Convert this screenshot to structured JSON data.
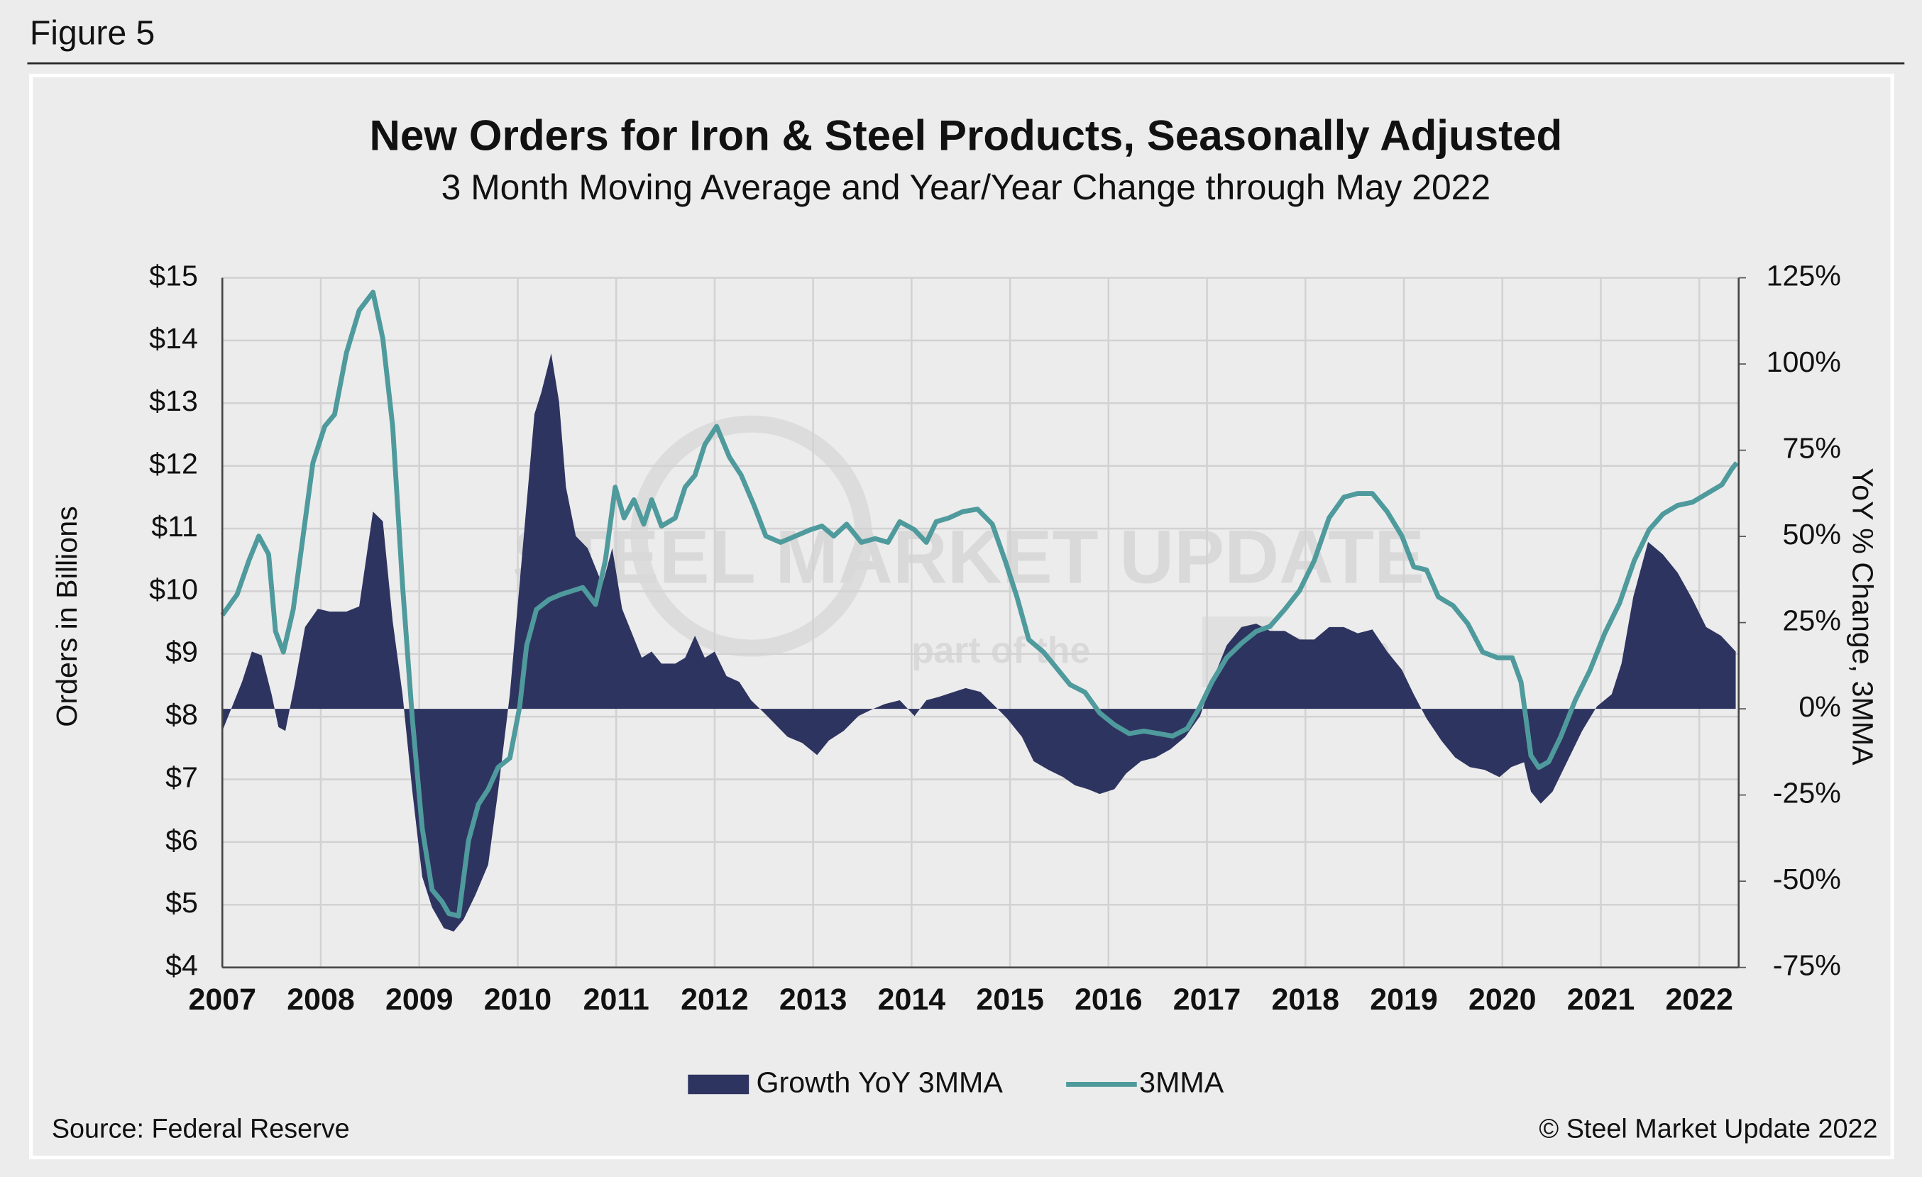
{
  "figure_label": "Figure 5",
  "chart_data": {
    "type": "area-line",
    "title": "New Orders for Iron & Steel Products, Seasonally Adjusted",
    "subtitle": "3 Month Moving Average and Year/Year Change through May 2022",
    "y_label": "Orders in Billions",
    "y2_label": "YoY % Change, 3MMA",
    "source": "Source: Federal Reserve",
    "copyright": "© Steel Market Update 2022",
    "watermark": {
      "main": "STEEL MARKET UPDATE",
      "left": "part of the",
      "right": "Group"
    },
    "grid": true,
    "xlim": [
      2007,
      2022.4
    ],
    "xticks": [
      2007,
      2008,
      2009,
      2010,
      2011,
      2012,
      2013,
      2014,
      2015,
      2016,
      2017,
      2018,
      2019,
      2020,
      2021,
      2022
    ],
    "ylim": [
      4,
      15
    ],
    "yticks": [
      {
        "value": 4,
        "label": "$4"
      },
      {
        "value": 5,
        "label": "$5"
      },
      {
        "value": 6,
        "label": "$6"
      },
      {
        "value": 7,
        "label": "$7"
      },
      {
        "value": 8,
        "label": "$8"
      },
      {
        "value": 9,
        "label": "$9"
      },
      {
        "value": 10,
        "label": "$10"
      },
      {
        "value": 11,
        "label": "$11"
      },
      {
        "value": 12,
        "label": "$12"
      },
      {
        "value": 13,
        "label": "$13"
      },
      {
        "value": 14,
        "label": "$14"
      },
      {
        "value": 15,
        "label": "$15"
      }
    ],
    "y2lim": [
      -75,
      125
    ],
    "y2ticks": [
      {
        "value": -75,
        "label": "-75%"
      },
      {
        "value": -50,
        "label": "-50%"
      },
      {
        "value": -25,
        "label": "-25%"
      },
      {
        "value": 0,
        "label": "0%"
      },
      {
        "value": 25,
        "label": "25%"
      },
      {
        "value": 50,
        "label": "50%"
      },
      {
        "value": 75,
        "label": "75%"
      },
      {
        "value": 100,
        "label": "100%"
      },
      {
        "value": 125,
        "label": "125%"
      }
    ],
    "series": [
      {
        "name": "Growth YoY 3MMA",
        "type": "area",
        "axis": "y2",
        "color": "#2e3460",
        "x": [
          2007.0,
          2007.1,
          2007.2,
          2007.3,
          2007.4,
          2007.5,
          2007.57,
          2007.64,
          2007.74,
          2007.84,
          2007.97,
          2008.09,
          2008.26,
          2008.39,
          2008.53,
          2008.63,
          2008.73,
          2008.83,
          2008.93,
          2009.03,
          2009.13,
          2009.25,
          2009.35,
          2009.45,
          2009.57,
          2009.7,
          2009.8,
          2009.92,
          2010.04,
          2010.17,
          2010.24,
          2010.34,
          2010.42,
          2010.49,
          2010.59,
          2010.71,
          2010.86,
          2010.96,
          2011.06,
          2011.16,
          2011.26,
          2011.36,
          2011.46,
          2011.6,
          2011.7,
          2011.8,
          2011.9,
          2012.0,
          2012.12,
          2012.25,
          2012.37,
          2012.5,
          2012.62,
          2012.74,
          2012.89,
          2013.04,
          2013.16,
          2013.31,
          2013.46,
          2013.61,
          2013.73,
          2013.88,
          2014.03,
          2014.15,
          2014.28,
          2014.43,
          2014.55,
          2014.7,
          2014.85,
          2014.97,
          2015.12,
          2015.24,
          2015.39,
          2015.54,
          2015.66,
          2015.79,
          2015.91,
          2016.06,
          2016.18,
          2016.33,
          2016.48,
          2016.63,
          2016.78,
          2016.93,
          2017.05,
          2017.2,
          2017.35,
          2017.5,
          2017.64,
          2017.79,
          2017.94,
          2018.09,
          2018.24,
          2018.39,
          2018.53,
          2018.68,
          2018.83,
          2018.98,
          2019.1,
          2019.23,
          2019.38,
          2019.52,
          2019.67,
          2019.82,
          2019.97,
          2020.09,
          2020.22,
          2020.29,
          2020.39,
          2020.51,
          2020.66,
          2020.81,
          2020.96,
          2021.11,
          2021.21,
          2021.33,
          2021.48,
          2021.63,
          2021.78,
          2021.93,
          2022.07,
          2022.22,
          2022.37
        ],
        "values": [
          -6.4,
          0.7,
          7.8,
          16.6,
          15.5,
          4.2,
          -5.3,
          -6.4,
          7.8,
          23.7,
          29,
          28.2,
          28.2,
          29.7,
          57.2,
          54.4,
          25.4,
          4.2,
          -24,
          -48.7,
          -57.6,
          -63.6,
          -64.6,
          -61.1,
          -54,
          -45.2,
          -24,
          4.2,
          43.1,
          85.5,
          91.8,
          103.1,
          89,
          64.3,
          50.1,
          46.6,
          36,
          46.6,
          29,
          21.9,
          14.8,
          16.6,
          13.1,
          13.1,
          14.8,
          21.2,
          14.8,
          16.6,
          9.5,
          7.8,
          2.5,
          -1.1,
          -4.6,
          -8.1,
          -9.9,
          -13.4,
          -9.2,
          -6.4,
          -2.1,
          0,
          1.4,
          2.5,
          -2.1,
          2.5,
          3.5,
          4.9,
          6,
          4.9,
          0.7,
          -2.8,
          -8.1,
          -15.2,
          -17.7,
          -19.8,
          -22.2,
          -23.3,
          -24.7,
          -23.3,
          -18.7,
          -15.2,
          -14.1,
          -11.7,
          -8.1,
          -2.1,
          7.8,
          18.4,
          23.7,
          24.7,
          22.6,
          22.6,
          20.1,
          20.1,
          23.7,
          23.7,
          21.9,
          23,
          16.6,
          11.3,
          4.2,
          -2.8,
          -9.2,
          -14.1,
          -16.9,
          -17.7,
          -19.8,
          -16.9,
          -15.5,
          -24,
          -27.5,
          -24,
          -15.2,
          -6.4,
          0.7,
          4.2,
          13.1,
          32.5,
          48.4,
          44.8,
          39.5,
          31.8,
          23.7,
          21.2,
          16.6
        ]
      },
      {
        "name": "3MMA",
        "type": "line",
        "axis": "y",
        "color": "#4f9a9c",
        "x": [
          2007.0,
          2007.15,
          2007.27,
          2007.37,
          2007.47,
          2007.54,
          2007.62,
          2007.72,
          2007.82,
          2007.92,
          2008.04,
          2008.14,
          2008.26,
          2008.39,
          2008.53,
          2008.63,
          2008.73,
          2008.83,
          2008.93,
          2009.03,
          2009.13,
          2009.23,
          2009.3,
          2009.4,
          2009.5,
          2009.6,
          2009.7,
          2009.8,
          2009.92,
          2010.02,
          2010.09,
          2010.19,
          2010.32,
          2010.44,
          2010.56,
          2010.66,
          2010.79,
          2010.89,
          2010.99,
          2011.08,
          2011.18,
          2011.28,
          2011.36,
          2011.46,
          2011.6,
          2011.7,
          2011.8,
          2011.9,
          2012.02,
          2012.15,
          2012.27,
          2012.4,
          2012.52,
          2012.67,
          2012.82,
          2012.97,
          2013.09,
          2013.21,
          2013.34,
          2013.49,
          2013.63,
          2013.76,
          2013.88,
          2014.03,
          2014.15,
          2014.25,
          2014.38,
          2014.52,
          2014.67,
          2014.82,
          2014.95,
          2015.07,
          2015.19,
          2015.34,
          2015.47,
          2015.61,
          2015.76,
          2015.91,
          2016.06,
          2016.21,
          2016.36,
          2016.51,
          2016.65,
          2016.8,
          2016.93,
          2017.05,
          2017.2,
          2017.35,
          2017.5,
          2017.64,
          2017.79,
          2017.94,
          2018.09,
          2018.24,
          2018.39,
          2018.53,
          2018.68,
          2018.83,
          2018.98,
          2019.1,
          2019.23,
          2019.35,
          2019.5,
          2019.65,
          2019.8,
          2019.95,
          2020.1,
          2020.19,
          2020.29,
          2020.37,
          2020.47,
          2020.59,
          2020.74,
          2020.89,
          2021.04,
          2021.19,
          2021.34,
          2021.49,
          2021.63,
          2021.78,
          2021.93,
          2022.08,
          2022.23,
          2022.33,
          2022.38
        ],
        "values": [
          9.62,
          9.95,
          10.49,
          10.88,
          10.59,
          9.36,
          9.03,
          9.71,
          10.88,
          12.05,
          12.63,
          12.82,
          13.8,
          14.48,
          14.77,
          14.03,
          12.63,
          10.1,
          7.96,
          6.22,
          5.24,
          5.05,
          4.86,
          4.82,
          6.02,
          6.6,
          6.84,
          7.19,
          7.34,
          8.16,
          9.13,
          9.71,
          9.87,
          9.95,
          10.01,
          10.06,
          9.79,
          10.49,
          11.66,
          11.17,
          11.46,
          11.07,
          11.46,
          11.04,
          11.17,
          11.66,
          11.85,
          12.34,
          12.63,
          12.14,
          11.85,
          11.37,
          10.88,
          10.78,
          10.88,
          10.98,
          11.04,
          10.88,
          11.07,
          10.78,
          10.84,
          10.78,
          11.11,
          10.98,
          10.78,
          11.11,
          11.17,
          11.27,
          11.31,
          11.07,
          10.49,
          9.91,
          9.23,
          9.03,
          8.78,
          8.51,
          8.39,
          8.06,
          7.87,
          7.73,
          7.77,
          7.73,
          7.69,
          7.81,
          8.16,
          8.55,
          8.94,
          9.17,
          9.36,
          9.44,
          9.71,
          10.01,
          10.49,
          11.17,
          11.5,
          11.56,
          11.56,
          11.27,
          10.88,
          10.39,
          10.34,
          9.91,
          9.77,
          9.48,
          9.03,
          8.94,
          8.94,
          8.55,
          7.38,
          7.19,
          7.28,
          7.67,
          8.26,
          8.74,
          9.33,
          9.81,
          10.49,
          10.98,
          11.23,
          11.37,
          11.42,
          11.56,
          11.7,
          11.95,
          12.05
        ]
      }
    ]
  }
}
